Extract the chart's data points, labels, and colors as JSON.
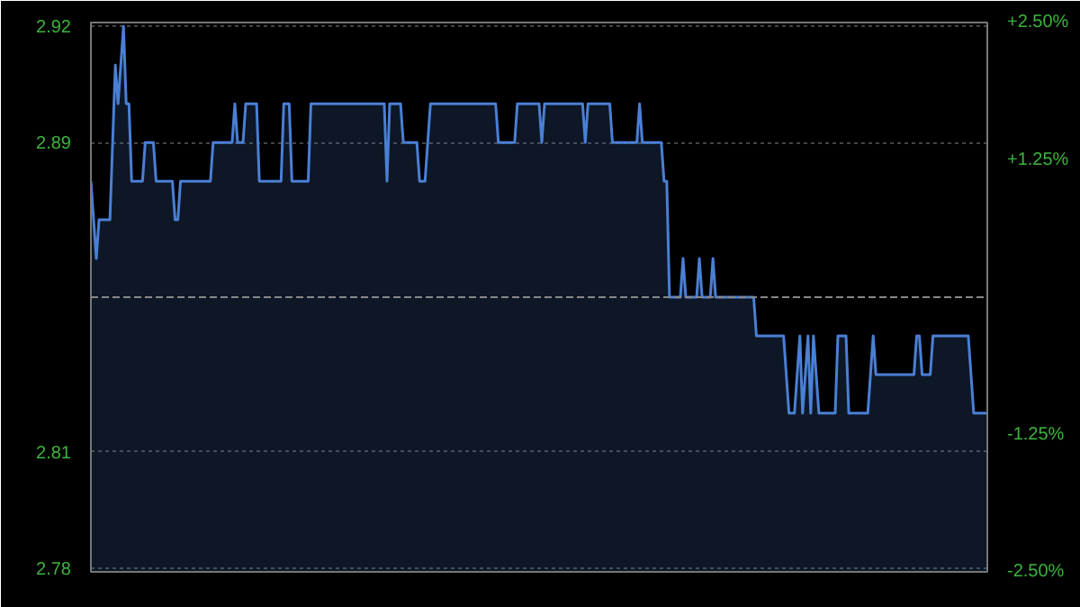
{
  "chart_data": {
    "type": "area",
    "categories": [
      null,
      null,
      null,
      null,
      null,
      null,
      null,
      null,
      null,
      null,
      null,
      null,
      null,
      null,
      null,
      null,
      null,
      null,
      null,
      null,
      null,
      null,
      null,
      null,
      null,
      null,
      null,
      null,
      null,
      null,
      null,
      null,
      null,
      null,
      null,
      null,
      null,
      null,
      null,
      null,
      null,
      null,
      null,
      null,
      null,
      null,
      null,
      null,
      null,
      null,
      null,
      null,
      null,
      null,
      null,
      null,
      null,
      null,
      null,
      null,
      null,
      null,
      null,
      null,
      null,
      null,
      null,
      null,
      null,
      null,
      null,
      null,
      null,
      null,
      null,
      null,
      null,
      null,
      null,
      null,
      null,
      null,
      null,
      null,
      null,
      null,
      null,
      null,
      null,
      null,
      null,
      null,
      null,
      null,
      null,
      null,
      null,
      null,
      null,
      null,
      null,
      null,
      null,
      null,
      null,
      null,
      null,
      null,
      null,
      null,
      null,
      null,
      null,
      null,
      null,
      null,
      null,
      null,
      null,
      null,
      null,
      null,
      null,
      null,
      null,
      null,
      null,
      null,
      null,
      null,
      null,
      null,
      null,
      null,
      null,
      null,
      null,
      null,
      null,
      null,
      null,
      null,
      null,
      null,
      null,
      null,
      null,
      null,
      null,
      null,
      null,
      null,
      null,
      null,
      null,
      null,
      null,
      null,
      null,
      null,
      null,
      null,
      null,
      null,
      null,
      null,
      null,
      null,
      null,
      null,
      null,
      null,
      null,
      null,
      null,
      null,
      null,
      null,
      null,
      null,
      null,
      null,
      null,
      null,
      null,
      null,
      null,
      null,
      null,
      null,
      null,
      null,
      null,
      null,
      null,
      null,
      null,
      null,
      null,
      null,
      null,
      null,
      null,
      null,
      null,
      null,
      null,
      null,
      null,
      null,
      null,
      null,
      null,
      null,
      null,
      null,
      null,
      null,
      null,
      null,
      null,
      null,
      null,
      null,
      null,
      null,
      null,
      null,
      null,
      null,
      null,
      null,
      null,
      null,
      null,
      null,
      null,
      null,
      null,
      null,
      null,
      null,
      null,
      null,
      null,
      null,
      null,
      null,
      null,
      null,
      null,
      null,
      null,
      null,
      null,
      null,
      null,
      null,
      null,
      null,
      null,
      null,
      null,
      null,
      null,
      null,
      null,
      null,
      null,
      null,
      null,
      null,
      null,
      null,
      null,
      null,
      null,
      null,
      null,
      null,
      null,
      null,
      null,
      null,
      null,
      null,
      null,
      null,
      null,
      null,
      null,
      null,
      null,
      null,
      null,
      null,
      null,
      null,
      null,
      null,
      null,
      null,
      null,
      null,
      null,
      null,
      null,
      null,
      null,
      null,
      null,
      null,
      null,
      null,
      null,
      null,
      null,
      null,
      null,
      null,
      null,
      null,
      null,
      null,
      null,
      null,
      null,
      null,
      null,
      null,
      null
    ],
    "series": [
      {
        "color": "#4a7fd4",
        "values": [
          2.88,
          2.87,
          2.86,
          2.87,
          2.87,
          2.87,
          2.87,
          2.87,
          2.89,
          2.91,
          2.9,
          2.91,
          2.92,
          2.9,
          2.9,
          2.88,
          2.88,
          2.88,
          2.88,
          2.88,
          2.89,
          2.89,
          2.89,
          2.89,
          2.88,
          2.88,
          2.88,
          2.88,
          2.88,
          2.88,
          2.88,
          2.87,
          2.87,
          2.88,
          2.88,
          2.88,
          2.88,
          2.88,
          2.88,
          2.88,
          2.88,
          2.88,
          2.88,
          2.88,
          2.88,
          2.89,
          2.89,
          2.89,
          2.89,
          2.89,
          2.89,
          2.89,
          2.89,
          2.9,
          2.89,
          2.89,
          2.89,
          2.9,
          2.9,
          2.9,
          2.9,
          2.9,
          2.88,
          2.88,
          2.88,
          2.88,
          2.88,
          2.88,
          2.88,
          2.88,
          2.88,
          2.9,
          2.9,
          2.9,
          2.88,
          2.88,
          2.88,
          2.88,
          2.88,
          2.88,
          2.88,
          2.9,
          2.9,
          2.9,
          2.9,
          2.9,
          2.9,
          2.9,
          2.9,
          2.9,
          2.9,
          2.9,
          2.9,
          2.9,
          2.9,
          2.9,
          2.9,
          2.9,
          2.9,
          2.9,
          2.9,
          2.9,
          2.9,
          2.9,
          2.9,
          2.9,
          2.9,
          2.9,
          2.9,
          2.88,
          2.9,
          2.9,
          2.9,
          2.9,
          2.9,
          2.89,
          2.89,
          2.89,
          2.89,
          2.89,
          2.89,
          2.88,
          2.88,
          2.88,
          2.89,
          2.9,
          2.9,
          2.9,
          2.9,
          2.9,
          2.9,
          2.9,
          2.9,
          2.9,
          2.9,
          2.9,
          2.9,
          2.9,
          2.9,
          2.9,
          2.9,
          2.9,
          2.9,
          2.9,
          2.9,
          2.9,
          2.9,
          2.9,
          2.9,
          2.9,
          2.89,
          2.89,
          2.89,
          2.89,
          2.89,
          2.89,
          2.89,
          2.9,
          2.9,
          2.9,
          2.9,
          2.9,
          2.9,
          2.9,
          2.9,
          2.9,
          2.89,
          2.9,
          2.9,
          2.9,
          2.9,
          2.9,
          2.9,
          2.9,
          2.9,
          2.9,
          2.9,
          2.9,
          2.9,
          2.9,
          2.9,
          2.9,
          2.89,
          2.9,
          2.9,
          2.9,
          2.9,
          2.9,
          2.9,
          2.9,
          2.9,
          2.9,
          2.89,
          2.89,
          2.89,
          2.89,
          2.89,
          2.89,
          2.89,
          2.89,
          2.89,
          2.89,
          2.9,
          2.89,
          2.89,
          2.89,
          2.89,
          2.89,
          2.89,
          2.89,
          2.89,
          2.88,
          2.88,
          2.85,
          2.85,
          2.85,
          2.85,
          2.85,
          2.86,
          2.85,
          2.85,
          2.85,
          2.85,
          2.85,
          2.86,
          2.85,
          2.85,
          2.85,
          2.85,
          2.86,
          2.85,
          2.85,
          2.85,
          2.85,
          2.85,
          2.85,
          2.85,
          2.85,
          2.85,
          2.85,
          2.85,
          2.85,
          2.85,
          2.85,
          2.85,
          2.84,
          2.84,
          2.84,
          2.84,
          2.84,
          2.84,
          2.84,
          2.84,
          2.84,
          2.84,
          2.84,
          2.83,
          2.82,
          2.82,
          2.82,
          2.83,
          2.84,
          2.82,
          2.83,
          2.84,
          2.82,
          2.84,
          2.83,
          2.82,
          2.82,
          2.82,
          2.82,
          2.82,
          2.82,
          2.82,
          2.84,
          2.84,
          2.84,
          2.84,
          2.82,
          2.82,
          2.82,
          2.82,
          2.82,
          2.82,
          2.82,
          2.82,
          2.83,
          2.84,
          2.83,
          2.83,
          2.83,
          2.83,
          2.83,
          2.83,
          2.83,
          2.83,
          2.83,
          2.83,
          2.83,
          2.83,
          2.83,
          2.83,
          2.83,
          2.84,
          2.84,
          2.83,
          2.83,
          2.83,
          2.83,
          2.84,
          2.84,
          2.84,
          2.84,
          2.84,
          2.84,
          2.84,
          2.84,
          2.84,
          2.84,
          2.84,
          2.84,
          2.84,
          2.84,
          2.83,
          2.82,
          2.82,
          2.82,
          2.82,
          2.82,
          2.82
        ]
      }
    ],
    "ylim": [
      2.779,
      2.921
    ],
    "yticks": [
      2.92,
      2.89,
      2.81,
      2.78
    ],
    "y2lim": [
      -2.5,
      2.5
    ],
    "y2ticks": [
      {
        "value": 2.5,
        "label": "+2.50%"
      },
      {
        "value": 1.25,
        "label": "+1.25%"
      },
      {
        "value": -1.25,
        "label": "-1.25%"
      },
      {
        "value": -2.5,
        "label": "-2.50%"
      }
    ],
    "ref_lines": [
      {
        "axis": "y",
        "value": 2.85,
        "line_style": "dashed",
        "color": "#888888"
      }
    ],
    "grid": "y"
  }
}
